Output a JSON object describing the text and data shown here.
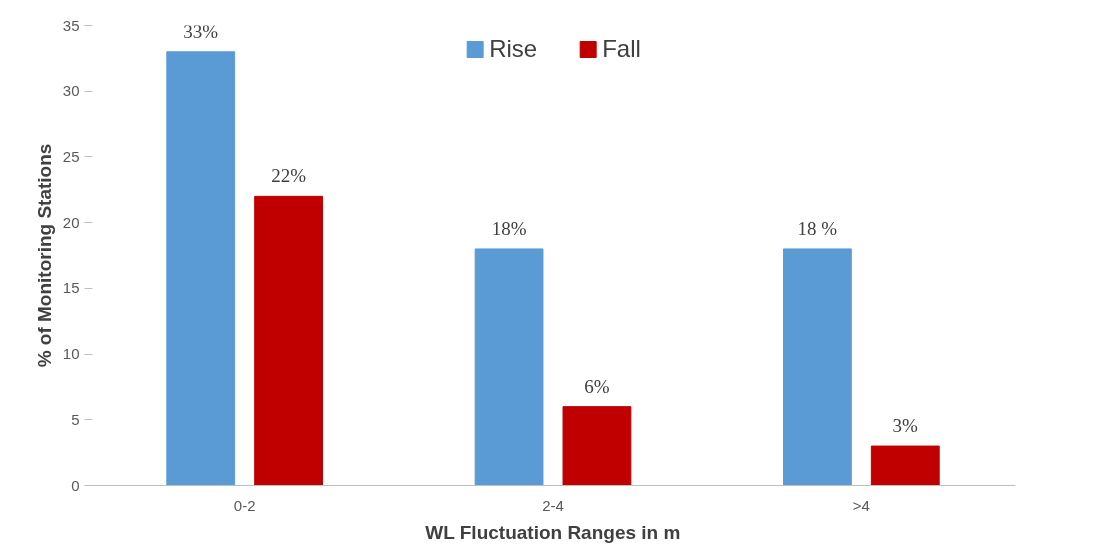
{
  "chart_data": {
    "type": "bar",
    "categories": [
      "0-2",
      "2-4",
      ">4"
    ],
    "xlabel": "WL Fluctuation Ranges in m",
    "ylabel": "% of Monitoring Stations",
    "ylim": [
      0,
      35
    ],
    "yticks": [
      0,
      5,
      10,
      15,
      20,
      25,
      30,
      35
    ],
    "grid": false,
    "legend": "top",
    "series": [
      {
        "name": "Rise",
        "color": "#5b9bd5",
        "values": [
          33,
          18,
          18
        ],
        "value_labels": [
          "33%",
          "18%",
          "18 %"
        ]
      },
      {
        "name": "Fall",
        "color": "#c00000",
        "values": [
          22,
          6,
          3
        ],
        "value_labels": [
          "22%",
          "6%",
          "3%"
        ]
      }
    ]
  }
}
